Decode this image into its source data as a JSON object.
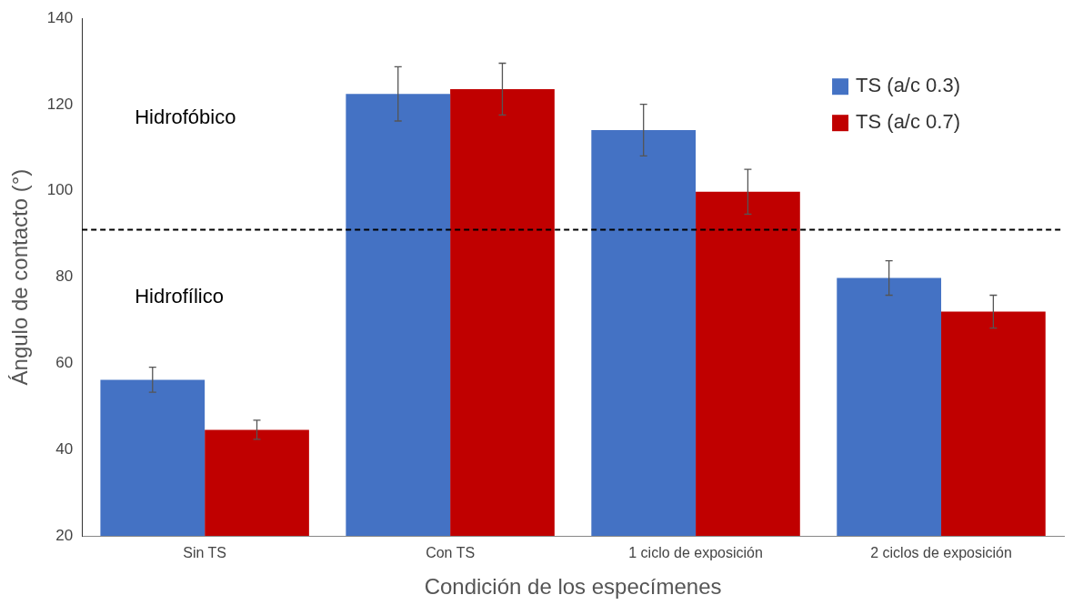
{
  "chart_data": {
    "type": "bar",
    "xlabel": "Condición de los especímenes",
    "ylabel": "Ángulo de contacto (°)",
    "categories": [
      "Sin TS",
      "Con TS",
      "1 ciclo de exposición",
      "2 ciclos de exposición"
    ],
    "series": [
      {
        "name": "TS (a/c 0.3)",
        "color": "#4472c4",
        "values": [
          56.2,
          122.5,
          114.1,
          79.8
        ],
        "errors": [
          2.9,
          6.3,
          6,
          4
        ]
      },
      {
        "name": "TS (a/c 0.7)",
        "color": "#c00000",
        "values": [
          44.6,
          123.6,
          99.8,
          72
        ],
        "errors": [
          2.2,
          6,
          5.2,
          3.8
        ]
      }
    ],
    "ylim": [
      20,
      140
    ],
    "yticks": [
      20,
      40,
      60,
      80,
      100,
      120,
      140
    ],
    "grid": false,
    "legend": "top right",
    "ref_lines": [
      {
        "axis": "y",
        "value": 91,
        "color": "#000000",
        "line_style": "dashed"
      }
    ],
    "annotations": [
      "Hidrofóbico",
      "Hidrofílico"
    ]
  }
}
